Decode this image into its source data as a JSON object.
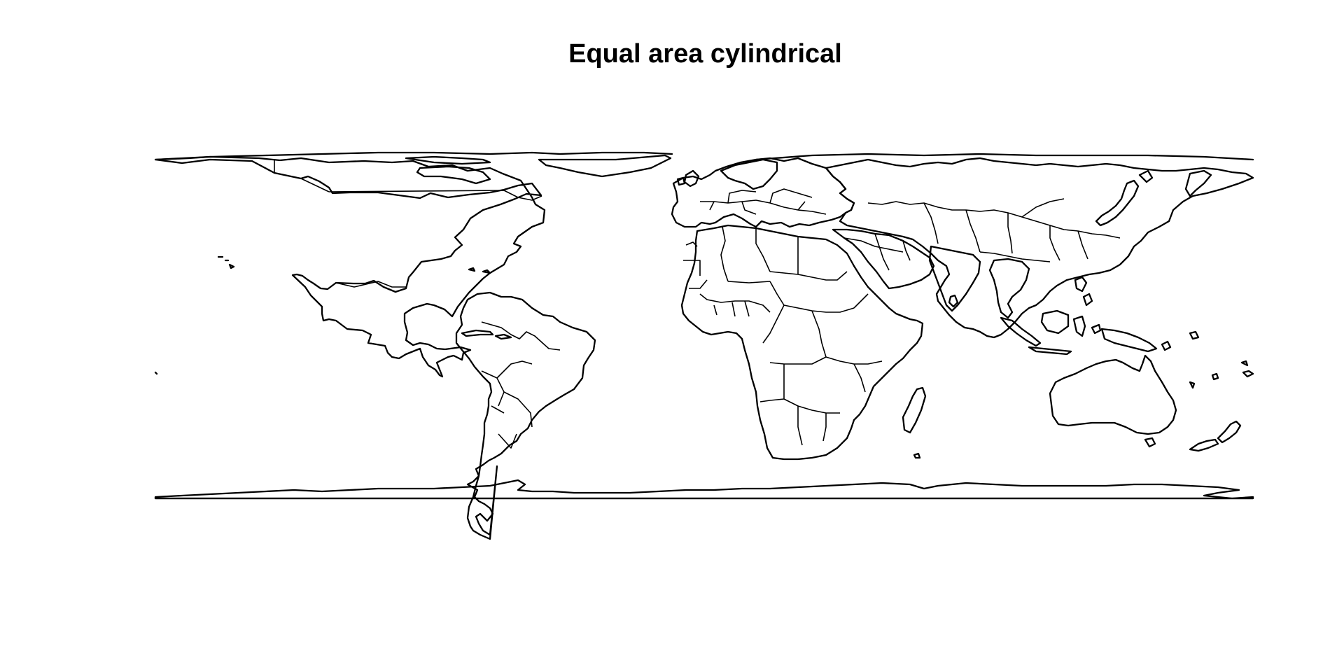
{
  "title": "Equal area cylindrical",
  "map": {
    "projection": "Equal area cylindrical",
    "stroke_color": "#000000",
    "background": "#ffffff",
    "features": [
      "North America",
      "Greenland",
      "South America",
      "Europe",
      "Africa",
      "Asia",
      "Australia",
      "Antarctica",
      "Madagascar",
      "New Zealand",
      "Japan",
      "Indonesia",
      "Caribbean"
    ]
  }
}
